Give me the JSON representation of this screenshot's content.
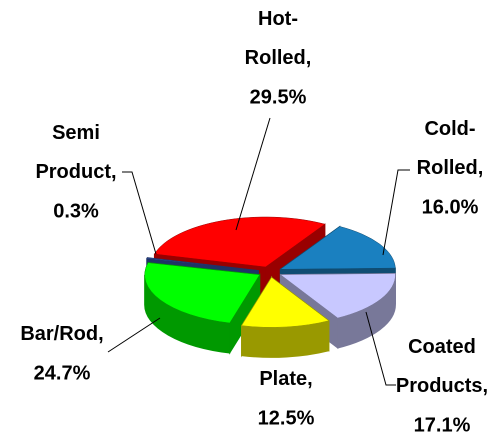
{
  "chart_data": {
    "type": "pie",
    "categories": [
      "Hot-Rolled,",
      "Cold-Rolled,",
      "Coated Products,",
      "Plate,",
      "Bar/Rod,",
      "Semi Product,"
    ],
    "values": [
      29.5,
      16.0,
      17.1,
      12.5,
      24.7,
      0.3
    ],
    "value_labels": [
      "29.5%",
      "16.0%",
      "17.1%",
      "12.5%",
      "24.7%",
      "0.3%"
    ],
    "colors": [
      "#ff0000",
      "#1a80c0",
      "#c8c8ff",
      "#ffff00",
      "#00ff00",
      "#3355aa"
    ]
  }
}
